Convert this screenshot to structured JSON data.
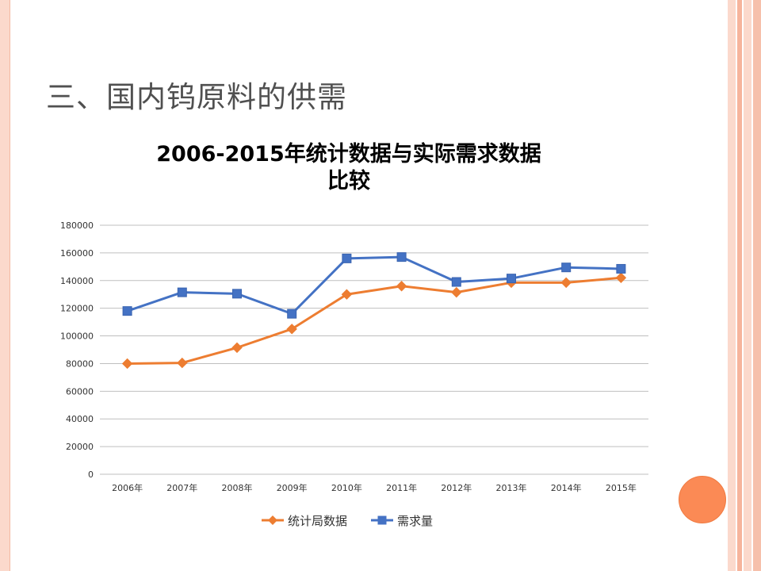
{
  "slide": {
    "title": "三、国内钨原料的供需"
  },
  "colors": {
    "accent_orange": "#ed7d31",
    "accent_blue": "#4472c4",
    "frame_pink": "#fbd9cc",
    "circle": "#fb8a55"
  },
  "chart_data": {
    "type": "line",
    "title_line1": "2006-2015年统计数据与实际需求数据",
    "title_line2": "比较",
    "categories": [
      "2006年",
      "2007年",
      "2008年",
      "2009年",
      "2010年",
      "2011年",
      "2012年",
      "2013年",
      "2014年",
      "2015年"
    ],
    "series": [
      {
        "name": "统计局数据",
        "color": "#ed7d31",
        "marker": "diamond",
        "values": [
          80000,
          80500,
          91500,
          105000,
          130000,
          136000,
          131500,
          138500,
          138500,
          142000
        ]
      },
      {
        "name": "需求量",
        "color": "#4472c4",
        "marker": "square",
        "values": [
          118000,
          131500,
          130500,
          116000,
          156000,
          157000,
          139000,
          141500,
          149500,
          148500
        ]
      }
    ],
    "ylim": [
      0,
      180000
    ],
    "yticks": [
      0,
      20000,
      40000,
      60000,
      80000,
      100000,
      120000,
      140000,
      160000,
      180000
    ],
    "grid": true,
    "legend_position": "bottom"
  }
}
